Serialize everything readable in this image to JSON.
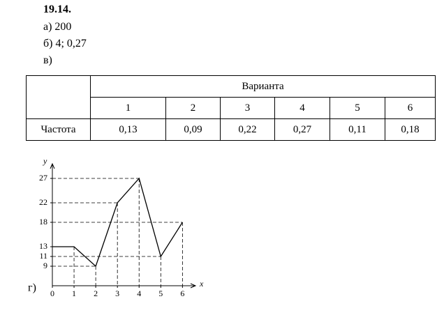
{
  "document": {
    "number": "19.14.",
    "answers": [
      "а) 200",
      "б) 4; 0,27",
      "в)"
    ],
    "graph_label": "г)"
  },
  "table": {
    "header": "Варианта",
    "row_label": "Частота",
    "columns": [
      "1",
      "2",
      "3",
      "4",
      "5",
      "6"
    ],
    "values": [
      "0,13",
      "0,09",
      "0,22",
      "0,27",
      "0,11",
      "0,18"
    ]
  },
  "chart_data": {
    "type": "line",
    "x_label": "x",
    "y_label": "y",
    "x": [
      0,
      1,
      2,
      3,
      4,
      5,
      6
    ],
    "values": [
      13,
      13,
      9,
      22,
      27,
      11,
      18
    ],
    "xlim": [
      0,
      6.6
    ],
    "ylim": [
      5,
      30
    ],
    "xticks": [
      0,
      1,
      2,
      3,
      4,
      5,
      6
    ],
    "yticks": [
      9,
      11,
      13,
      18,
      22,
      27
    ]
  }
}
